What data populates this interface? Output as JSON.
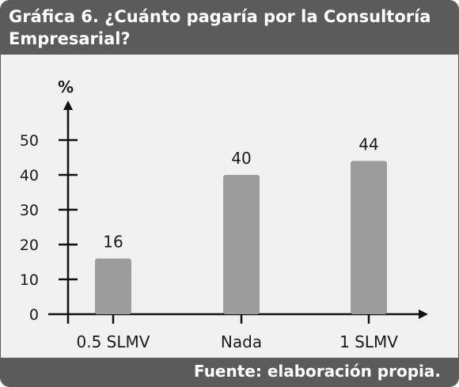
{
  "header": {
    "title_line1": "Gráfica 6. ¿Cuánto pagaría por la Consultoría",
    "title_line2": "Empresarial?"
  },
  "footer": {
    "source": "Fuente: elaboración propia."
  },
  "colors": {
    "bar": "#9c9c9c",
    "header_bg": "#5b5b5b",
    "chart_bg": "#f1f1f1",
    "axis": "#111111"
  },
  "chart_data": {
    "type": "bar",
    "categories": [
      "0.5 SLMV",
      "Nada",
      "1 SLMV"
    ],
    "values": [
      16,
      40,
      44
    ],
    "data_labels": [
      "16",
      "40",
      "44"
    ],
    "ylabel": "%",
    "yticks": [
      0,
      10,
      20,
      30,
      40,
      50
    ],
    "ylim": [
      0,
      60
    ],
    "grid": false,
    "legend": "none"
  }
}
